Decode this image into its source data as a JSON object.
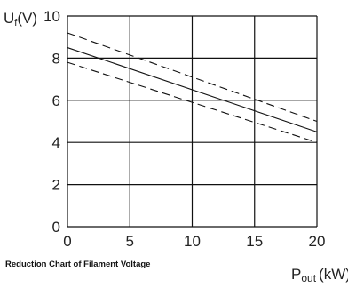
{
  "chart_data": {
    "type": "line",
    "title": "Reduction Chart of Filament Voltage",
    "ylabel_main": "U",
    "ylabel_sub": "f",
    "ylabel_unit": "(V)",
    "xlabel_main": "P",
    "xlabel_sub": "out",
    "xlabel_unit": "(kW)",
    "x_ticks": [
      0,
      5,
      10,
      15,
      20
    ],
    "y_ticks": [
      0,
      2,
      4,
      6,
      8,
      10
    ],
    "xlim": [
      0,
      20
    ],
    "ylim": [
      0,
      10
    ],
    "grid": true,
    "series": [
      {
        "style": "dashed",
        "x": [
          0,
          20
        ],
        "y": [
          9.2,
          5.0
        ]
      },
      {
        "style": "solid",
        "x": [
          0,
          20
        ],
        "y": [
          8.5,
          4.5
        ]
      },
      {
        "style": "dashed",
        "x": [
          0,
          20
        ],
        "y": [
          7.8,
          4.0
        ]
      }
    ]
  }
}
